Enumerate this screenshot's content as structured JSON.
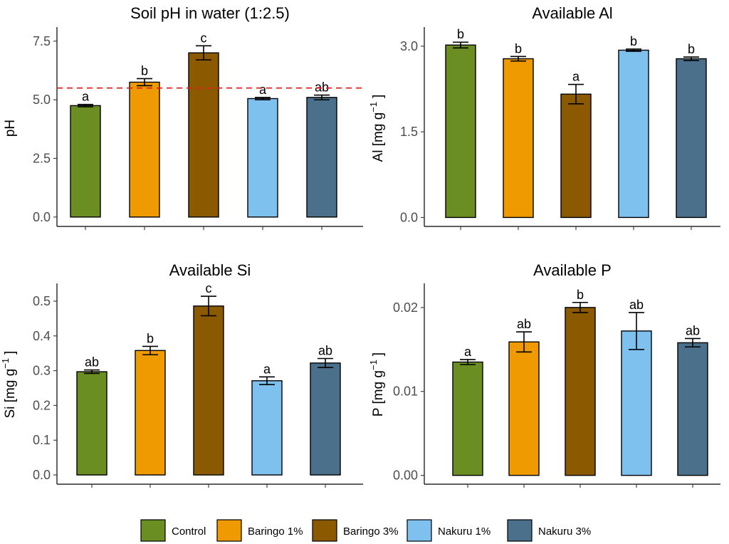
{
  "legend": {
    "items": [
      {
        "name": "Control",
        "color": "#6B8E23"
      },
      {
        "name": "Baringo 1%",
        "color": "#EE9A00"
      },
      {
        "name": "Baringo 3%",
        "color": "#8B5A00"
      },
      {
        "name": "Nakuru 1%",
        "color": "#7EC0EE"
      },
      {
        "name": "Nakuru 3%",
        "color": "#4A708B"
      }
    ]
  },
  "chart_data": [
    {
      "type": "bar",
      "title": "Soil pH in water (1:2.5)",
      "ylabel": "pH",
      "ylabel_sup": "",
      "ylabel_tail": "",
      "categories": [
        "Control",
        "Baringo 1%",
        "Baringo 3%",
        "Nakuru 1%",
        "Nakuru 3%"
      ],
      "values": [
        4.75,
        5.75,
        7.0,
        5.05,
        5.1
      ],
      "errors": [
        0.05,
        0.15,
        0.3,
        0.05,
        0.1
      ],
      "letters": [
        "a",
        "b",
        "c",
        "a",
        "ab"
      ],
      "ylim": [
        -0.4,
        8.1
      ],
      "yticks": [
        0,
        2.5,
        5,
        7.5
      ],
      "ytick_labels": [
        "0.0",
        "2.5",
        "5.0",
        "7.5"
      ],
      "reference_line": {
        "value": 5.5,
        "style": "dashed",
        "color": "#e0201b"
      }
    },
    {
      "type": "bar",
      "title": "Available Al",
      "ylabel": "Al [mg g",
      "ylabel_sup": "−1",
      "ylabel_tail": "]",
      "categories": [
        "Control",
        "Baringo 1%",
        "Baringo 3%",
        "Nakuru 1%",
        "Nakuru 3%"
      ],
      "values": [
        3.02,
        2.78,
        2.16,
        2.93,
        2.78
      ],
      "errors": [
        0.05,
        0.04,
        0.17,
        0.02,
        0.03
      ],
      "letters": [
        "b",
        "b",
        "a",
        "b",
        "b"
      ],
      "ylim": [
        -0.157,
        3.335
      ],
      "yticks": [
        0,
        1.5,
        3
      ],
      "ytick_labels": [
        "0.0",
        "1.5",
        "3.0"
      ]
    },
    {
      "type": "bar",
      "title": "Available Si",
      "ylabel": "Si [mg g",
      "ylabel_sup": "−1",
      "ylabel_tail": "]",
      "categories": [
        "Control",
        "Baringo 1%",
        "Baringo 3%",
        "Nakuru 1%",
        "Nakuru 3%"
      ],
      "values": [
        0.297,
        0.358,
        0.486,
        0.271,
        0.322
      ],
      "errors": [
        0.005,
        0.012,
        0.028,
        0.011,
        0.013
      ],
      "letters": [
        "ab",
        "b",
        "c",
        "a",
        "ab"
      ],
      "ylim": [
        -0.0266,
        0.5511
      ],
      "yticks": [
        0,
        0.1,
        0.2,
        0.3,
        0.4,
        0.5
      ],
      "ytick_labels": [
        "0.0",
        "0.1",
        "0.2",
        "0.3",
        "0.4",
        "0.5"
      ]
    },
    {
      "type": "bar",
      "title": "Available P",
      "ylabel": "P [mg g",
      "ylabel_sup": "−1",
      "ylabel_tail": "]",
      "categories": [
        "Control",
        "Baringo 1%",
        "Baringo 3%",
        "Nakuru 1%",
        "Nakuru 3%"
      ],
      "values": [
        0.0135,
        0.0159,
        0.02,
        0.0172,
        0.0158
      ],
      "errors": [
        0.0003,
        0.0012,
        0.0006,
        0.0022,
        0.0005
      ],
      "letters": [
        "a",
        "ab",
        "b",
        "ab",
        "ab"
      ],
      "ylim": [
        -0.00105,
        0.02287
      ],
      "yticks": [
        0,
        0.01,
        0.02
      ],
      "ytick_labels": [
        "0.00",
        "0.01",
        "0.02"
      ]
    }
  ]
}
